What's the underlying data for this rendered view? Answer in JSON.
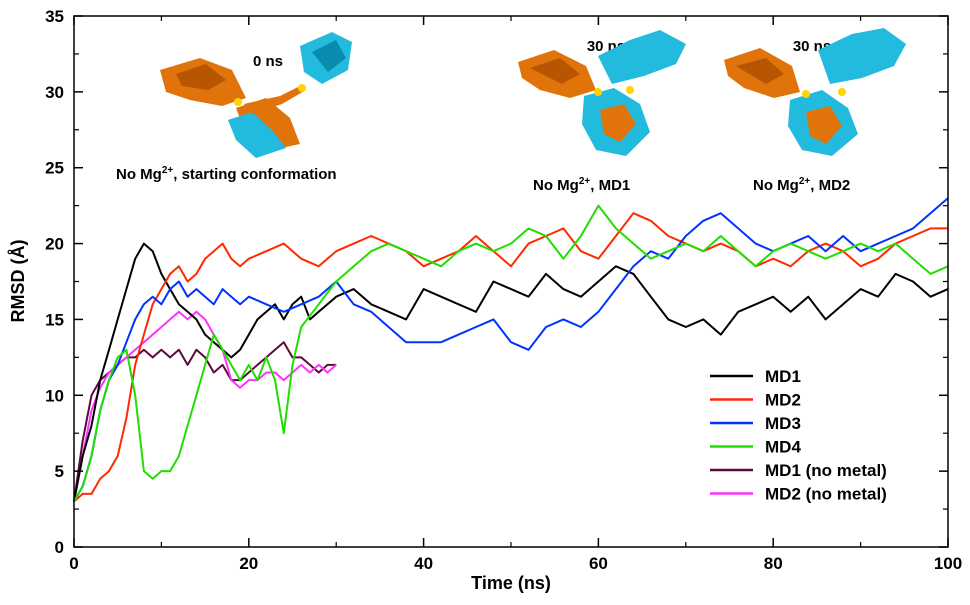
{
  "chart_data": {
    "type": "line",
    "xlabel": "Time (ns)",
    "ylabel": "RMSD (Å)",
    "xlim": [
      0,
      100
    ],
    "ylim": [
      0,
      35
    ],
    "xticks": [
      0,
      20,
      40,
      60,
      80,
      100
    ],
    "yticks": [
      0,
      5,
      10,
      15,
      20,
      25,
      30,
      35
    ],
    "grid": false,
    "legend_position": "bottom-right",
    "series": [
      {
        "name": "MD1",
        "color": "#000000",
        "x": [
          0,
          1,
          2,
          3,
          4,
          5,
          6,
          7,
          8,
          9,
          10,
          11,
          12,
          13,
          14,
          15,
          16,
          17,
          18,
          19,
          20,
          21,
          22,
          23,
          24,
          25,
          26,
          27,
          28,
          29,
          30,
          32,
          34,
          36,
          38,
          40,
          42,
          44,
          46,
          48,
          50,
          52,
          54,
          56,
          58,
          60,
          62,
          64,
          66,
          68,
          70,
          72,
          74,
          76,
          78,
          80,
          82,
          84,
          86,
          88,
          90,
          92,
          94,
          96,
          98,
          100
        ],
        "y": [
          3,
          6,
          8,
          11,
          13,
          15,
          17,
          19,
          20,
          19.5,
          18,
          17,
          16,
          15.5,
          15,
          14,
          13.5,
          13,
          12.5,
          13,
          14,
          15,
          15.5,
          16,
          15,
          16,
          16.5,
          15,
          15.5,
          16,
          16.5,
          17,
          16,
          15.5,
          15,
          17,
          16.5,
          16,
          15.5,
          17.5,
          17,
          16.5,
          18,
          17,
          16.5,
          17.5,
          18.5,
          18,
          16.5,
          15,
          14.5,
          15,
          14,
          15.5,
          16,
          16.5,
          15.5,
          16.5,
          15,
          16,
          17,
          16.5,
          18,
          17.5,
          16.5,
          17
        ]
      },
      {
        "name": "MD2",
        "color": "#ff2a00",
        "x": [
          0,
          1,
          2,
          3,
          4,
          5,
          6,
          7,
          8,
          9,
          10,
          11,
          12,
          13,
          14,
          15,
          16,
          17,
          18,
          19,
          20,
          22,
          24,
          26,
          28,
          30,
          32,
          34,
          36,
          38,
          40,
          42,
          44,
          46,
          48,
          50,
          52,
          54,
          56,
          58,
          60,
          62,
          64,
          66,
          68,
          70,
          72,
          74,
          76,
          78,
          80,
          82,
          84,
          86,
          88,
          90,
          92,
          94,
          96,
          98,
          100
        ],
        "y": [
          3,
          3.5,
          3.5,
          4.5,
          5,
          6,
          8.5,
          12,
          14,
          16,
          17,
          18,
          18.5,
          17.5,
          18,
          19,
          19.5,
          20,
          19,
          18.5,
          19,
          19.5,
          20,
          19,
          18.5,
          19.5,
          20,
          20.5,
          20,
          19.5,
          18.5,
          19,
          19.5,
          20.5,
          19.5,
          18.5,
          20,
          20.5,
          21,
          19.5,
          19,
          20.5,
          22,
          21.5,
          20.5,
          20,
          19.5,
          20,
          19.5,
          18.5,
          19,
          18.5,
          19.5,
          20,
          19.5,
          18.5,
          19,
          20,
          20.5,
          21,
          21
        ]
      },
      {
        "name": "MD3",
        "color": "#0033ff",
        "x": [
          0,
          1,
          2,
          3,
          4,
          5,
          6,
          7,
          8,
          9,
          10,
          11,
          12,
          13,
          14,
          15,
          16,
          17,
          18,
          19,
          20,
          22,
          24,
          26,
          28,
          30,
          32,
          34,
          36,
          38,
          40,
          42,
          44,
          46,
          48,
          50,
          52,
          54,
          56,
          58,
          60,
          62,
          64,
          66,
          68,
          70,
          72,
          74,
          76,
          78,
          80,
          82,
          84,
          86,
          88,
          90,
          92,
          94,
          96,
          98,
          100
        ],
        "y": [
          3,
          4,
          6,
          9,
          11,
          12,
          13.5,
          15,
          16,
          16.5,
          16,
          17,
          17.5,
          16.5,
          17,
          16.5,
          16,
          17,
          16.5,
          16,
          16.5,
          16,
          15.5,
          16,
          16.5,
          17.5,
          16,
          15.5,
          14.5,
          13.5,
          13.5,
          13.5,
          14,
          14.5,
          15,
          13.5,
          13,
          14.5,
          15,
          14.5,
          15.5,
          17,
          18.5,
          19.5,
          19,
          20.5,
          21.5,
          22,
          21,
          20,
          19.5,
          20,
          20.5,
          19.5,
          20.5,
          19.5,
          20,
          20.5,
          21,
          22,
          23
        ]
      },
      {
        "name": "MD4",
        "color": "#22dd00",
        "x": [
          0,
          1,
          2,
          3,
          4,
          5,
          6,
          7,
          8,
          9,
          10,
          11,
          12,
          13,
          14,
          15,
          16,
          17,
          18,
          19,
          20,
          21,
          22,
          23,
          24,
          25,
          26,
          28,
          30,
          32,
          34,
          36,
          38,
          40,
          42,
          44,
          46,
          48,
          50,
          52,
          54,
          56,
          58,
          60,
          62,
          64,
          66,
          68,
          70,
          72,
          74,
          76,
          78,
          80,
          82,
          84,
          86,
          88,
          90,
          92,
          94,
          96,
          98,
          100
        ],
        "y": [
          3,
          4,
          6,
          9,
          11,
          12.5,
          13,
          10,
          5,
          4.5,
          5,
          5,
          6,
          8,
          10,
          12,
          14,
          13,
          12,
          11,
          12,
          11,
          12.5,
          11,
          7.5,
          12,
          14.5,
          16,
          17.5,
          18.5,
          19.5,
          20,
          19.5,
          19,
          18.5,
          19.5,
          20,
          19.5,
          20,
          21,
          20.5,
          19,
          20.5,
          22.5,
          21,
          20,
          19,
          19.5,
          20,
          19.5,
          20.5,
          19.5,
          18.5,
          19.5,
          20,
          19.5,
          19,
          19.5,
          20,
          19.5,
          20,
          19,
          18,
          18.5
        ]
      },
      {
        "name": "MD1 (no metal)",
        "color": "#5c0a3c",
        "x": [
          0,
          1,
          2,
          3,
          4,
          5,
          6,
          7,
          8,
          9,
          10,
          11,
          12,
          13,
          14,
          15,
          16,
          17,
          18,
          19,
          20,
          21,
          22,
          23,
          24,
          25,
          26,
          27,
          28,
          29,
          30
        ],
        "y": [
          3,
          7,
          10,
          11,
          11.5,
          12,
          12.5,
          12.5,
          13,
          12.5,
          13,
          12.5,
          13,
          12,
          13,
          12.5,
          11.5,
          12,
          11,
          11,
          11.5,
          12,
          12.5,
          13,
          13.5,
          12.5,
          12.5,
          12,
          11.5,
          12,
          12
        ]
      },
      {
        "name": "MD2 (no metal)",
        "color": "#ff33ff",
        "x": [
          0,
          1,
          2,
          3,
          4,
          5,
          6,
          7,
          8,
          9,
          10,
          11,
          12,
          13,
          14,
          15,
          16,
          17,
          18,
          19,
          20,
          21,
          22,
          23,
          24,
          25,
          26,
          27,
          28,
          29,
          30
        ],
        "y": [
          3,
          6,
          9,
          10.5,
          11.5,
          12,
          12.5,
          13,
          13.5,
          14,
          14.5,
          15,
          15.5,
          15,
          15.5,
          15,
          14,
          13,
          11,
          10.5,
          11,
          11,
          11.5,
          11.5,
          11,
          11.5,
          12,
          11.5,
          12,
          11.5,
          12
        ]
      }
    ]
  },
  "annotations": {
    "snapshot_0": {
      "time": "0 ns",
      "caption_prefix": "No Mg",
      "caption_sup": "2+",
      "caption_suffix": ", starting conformation"
    },
    "snapshot_1": {
      "time": "30 ns",
      "caption_prefix": "No Mg",
      "caption_sup": "2+",
      "caption_suffix": ", MD1"
    },
    "snapshot_2": {
      "time": "30 ns",
      "caption_prefix": "No Mg",
      "caption_sup": "2+",
      "caption_suffix": ", MD2"
    }
  },
  "structure_colors": {
    "domain_a": "#e0730a",
    "domain_b": "#22bbdd",
    "metal": "#ffd400"
  }
}
